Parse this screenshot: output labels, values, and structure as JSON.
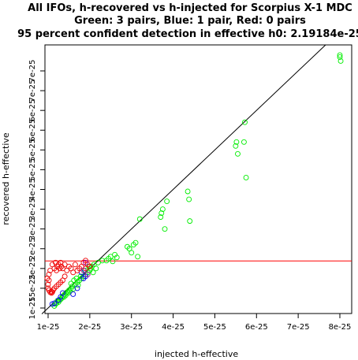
{
  "chart_data": {
    "type": "scatter",
    "title": "All IFOs, h-recovered vs h-injected for Scorpius X-1 MDC",
    "subtitle": "Green: 3 pairs, Blue: 1 pair, Red: 0 pairs",
    "subtitle2": "95 percent confident detection in effective h0: 2.19184e-25",
    "xlabel": "injected h-effective",
    "ylabel": "recovered h-effective",
    "xlim": [
      8.5e-26,
      8.15e-25
    ],
    "ylim": [
      9.5e-26,
      7.9e-25
    ],
    "x_ticks": [
      {
        "v": 1e-25,
        "label": "1e-25"
      },
      {
        "v": 2e-25,
        "label": "2e-25"
      },
      {
        "v": 3e-25,
        "label": "3e-25"
      },
      {
        "v": 4e-25,
        "label": "4e-25"
      },
      {
        "v": 5e-25,
        "label": "5e-25"
      },
      {
        "v": 6e-25,
        "label": "6e-25"
      },
      {
        "v": 7e-25,
        "label": "7e-25"
      },
      {
        "v": 8e-25,
        "label": "8e-25"
      }
    ],
    "y_ticks": [
      {
        "v": 1e-25,
        "label": "1e-25"
      },
      {
        "v": 1.5e-25,
        "label": "15e-25"
      },
      {
        "v": 2e-25,
        "label": "2e-25"
      },
      {
        "v": 2.5e-25,
        "label": "2e-25"
      },
      {
        "v": 3e-25,
        "label": "3e-25"
      },
      {
        "v": 3.5e-25,
        "label": "3e-25"
      },
      {
        "v": 4e-25,
        "label": "4e-25"
      },
      {
        "v": 4.5e-25,
        "label": "5e-25"
      },
      {
        "v": 5e-25,
        "label": "5e-25"
      },
      {
        "v": 5.5e-25,
        "label": "6e-25"
      },
      {
        "v": 6e-25,
        "label": "6e-25"
      },
      {
        "v": 6.5e-25,
        "label": "7e-25"
      },
      {
        "v": 7e-25,
        "label": "7e-25"
      }
    ],
    "threshold": 2.19184e-25,
    "threshold_color": "#ff0000",
    "diagonal_color": "#000000",
    "series": [
      {
        "color": "#00ee00",
        "x": [
          1.15,
          1.18,
          1.2,
          1.22,
          1.25,
          1.28,
          1.3,
          1.33,
          1.35,
          1.38,
          1.4,
          1.42,
          1.45,
          1.48,
          1.5,
          1.52,
          1.55,
          1.58,
          1.6,
          1.65,
          1.7,
          1.72,
          1.75,
          1.8,
          1.85,
          1.9,
          1.95,
          2.0,
          2.02,
          2.05,
          2.1,
          2.15,
          2.4,
          2.45,
          2.5,
          2.55,
          2.6,
          2.65,
          2.9,
          2.95,
          3.0,
          3.05,
          3.1,
          3.15,
          3.2,
          3.7,
          3.72,
          3.75,
          3.8,
          3.85,
          4.35,
          4.38,
          4.4,
          5.5,
          5.52,
          5.55,
          5.7,
          5.72,
          5.75,
          8.0,
          8.0,
          8.02,
          1.55,
          1.62,
          1.68,
          1.78,
          1.88,
          1.98,
          2.08,
          2.2,
          2.3
        ],
        "y": [
          1.05,
          1.1,
          1.12,
          1.18,
          1.15,
          1.2,
          1.22,
          1.25,
          1.3,
          1.28,
          1.35,
          1.32,
          1.4,
          1.38,
          1.45,
          1.42,
          1.5,
          1.55,
          1.48,
          1.6,
          1.65,
          1.58,
          1.7,
          1.75,
          1.8,
          1.85,
          1.9,
          1.95,
          2.0,
          2.05,
          2.1,
          2.0,
          2.2,
          2.25,
          2.3,
          2.18,
          2.35,
          2.28,
          2.55,
          2.5,
          2.4,
          2.6,
          2.65,
          2.3,
          3.25,
          3.3,
          3.4,
          3.5,
          3.0,
          3.7,
          3.95,
          3.75,
          3.2,
          5.1,
          5.2,
          4.9,
          5.2,
          5.7,
          4.3,
          7.35,
          7.4,
          7.25,
          1.62,
          1.7,
          1.75,
          1.8,
          1.95,
          2.05,
          1.9,
          2.15,
          2.2
        ]
      },
      {
        "color": "#0000ee",
        "x": [
          1.1,
          1.15,
          1.25,
          1.3,
          1.35,
          1.6,
          1.7,
          1.8,
          1.85,
          1.9
        ],
        "y": [
          1.1,
          1.12,
          1.2,
          1.28,
          1.38,
          1.35,
          1.5,
          1.9,
          1.75,
          1.8
        ]
      },
      {
        "color": "#ee0000",
        "x": [
          0.98,
          1.0,
          1.0,
          1.02,
          1.02,
          1.05,
          1.05,
          1.08,
          1.1,
          1.1,
          1.12,
          1.15,
          1.15,
          1.18,
          1.2,
          1.2,
          1.22,
          1.25,
          1.25,
          1.28,
          1.3,
          1.3,
          1.32,
          1.35,
          1.35,
          1.4,
          1.4,
          1.45,
          1.5,
          1.55,
          1.6,
          1.65,
          1.7,
          1.75,
          1.8,
          1.85,
          1.9,
          1.9,
          1.95,
          2.0,
          1.02,
          1.08
        ],
        "y": [
          1.75,
          1.5,
          1.6,
          1.45,
          1.7,
          1.4,
          1.95,
          1.38,
          1.4,
          2.1,
          1.45,
          1.5,
          2.0,
          2.15,
          1.55,
          1.95,
          2.05,
          1.6,
          2.1,
          2.0,
          1.65,
          2.15,
          2.05,
          2.0,
          1.7,
          2.1,
          1.8,
          1.95,
          2.05,
          2.0,
          1.9,
          2.1,
          1.95,
          2.0,
          2.05,
          2.15,
          2.0,
          2.2,
          2.1,
          2.05,
          1.85,
          1.42
        ]
      },
      {
        "color": "#aa00aa",
        "x": [
          1.85,
          1.9,
          1.95
        ],
        "y": [
          1.95,
          2.15,
          1.85
        ]
      }
    ]
  }
}
